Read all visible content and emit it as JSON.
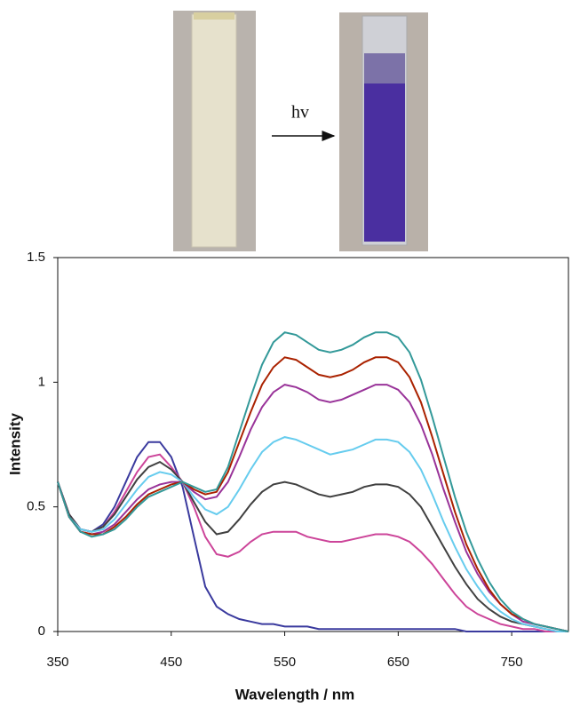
{
  "chart_data": {
    "type": "line",
    "annotation": "hv",
    "xlabel": "Wavelength / nm",
    "ylabel": "Intensity",
    "x": [
      350,
      360,
      370,
      380,
      390,
      400,
      410,
      420,
      430,
      440,
      450,
      460,
      470,
      480,
      490,
      500,
      510,
      520,
      530,
      540,
      550,
      560,
      570,
      580,
      590,
      600,
      610,
      620,
      630,
      640,
      650,
      660,
      670,
      680,
      690,
      700,
      710,
      720,
      730,
      740,
      750,
      760,
      770,
      780,
      790,
      800
    ],
    "xlim": [
      350,
      800
    ],
    "xticks": [
      350,
      450,
      550,
      650,
      750
    ],
    "ylim": [
      0,
      1.5
    ],
    "yticks": [
      0,
      0.5,
      1,
      1.5
    ],
    "series": [
      {
        "color": "#3a3a9e",
        "values": [
          0.6,
          0.47,
          0.41,
          0.4,
          0.43,
          0.5,
          0.6,
          0.7,
          0.76,
          0.76,
          0.7,
          0.58,
          0.38,
          0.18,
          0.1,
          0.07,
          0.05,
          0.04,
          0.03,
          0.03,
          0.02,
          0.02,
          0.02,
          0.01,
          0.01,
          0.01,
          0.01,
          0.01,
          0.01,
          0.01,
          0.01,
          0.01,
          0.01,
          0.01,
          0.01,
          0.01,
          0,
          0,
          0,
          0,
          0,
          0,
          0,
          0,
          0,
          0
        ]
      },
      {
        "color": "#cc4499",
        "values": [
          0.6,
          0.47,
          0.41,
          0.4,
          0.42,
          0.48,
          0.56,
          0.64,
          0.7,
          0.71,
          0.66,
          0.6,
          0.5,
          0.38,
          0.31,
          0.3,
          0.32,
          0.36,
          0.39,
          0.4,
          0.4,
          0.4,
          0.38,
          0.37,
          0.36,
          0.36,
          0.37,
          0.38,
          0.39,
          0.39,
          0.38,
          0.36,
          0.32,
          0.27,
          0.21,
          0.15,
          0.1,
          0.07,
          0.05,
          0.03,
          0.02,
          0.01,
          0.01,
          0,
          0,
          0
        ]
      },
      {
        "color": "#404040",
        "values": [
          0.6,
          0.47,
          0.41,
          0.4,
          0.42,
          0.47,
          0.54,
          0.61,
          0.66,
          0.68,
          0.65,
          0.6,
          0.52,
          0.44,
          0.39,
          0.4,
          0.45,
          0.51,
          0.56,
          0.59,
          0.6,
          0.59,
          0.57,
          0.55,
          0.54,
          0.55,
          0.56,
          0.58,
          0.59,
          0.59,
          0.58,
          0.55,
          0.5,
          0.42,
          0.34,
          0.26,
          0.19,
          0.13,
          0.09,
          0.06,
          0.04,
          0.03,
          0.02,
          0.01,
          0,
          0
        ]
      },
      {
        "color": "#66ccee",
        "values": [
          0.6,
          0.46,
          0.41,
          0.4,
          0.41,
          0.45,
          0.51,
          0.57,
          0.62,
          0.64,
          0.63,
          0.6,
          0.54,
          0.49,
          0.47,
          0.5,
          0.57,
          0.65,
          0.72,
          0.76,
          0.78,
          0.77,
          0.75,
          0.73,
          0.71,
          0.72,
          0.73,
          0.75,
          0.77,
          0.77,
          0.76,
          0.72,
          0.65,
          0.55,
          0.44,
          0.34,
          0.25,
          0.18,
          0.12,
          0.08,
          0.05,
          0.03,
          0.02,
          0.01,
          0,
          0
        ]
      },
      {
        "color": "#993399",
        "values": [
          0.6,
          0.46,
          0.4,
          0.39,
          0.4,
          0.43,
          0.48,
          0.53,
          0.57,
          0.59,
          0.6,
          0.6,
          0.56,
          0.53,
          0.54,
          0.6,
          0.7,
          0.81,
          0.9,
          0.96,
          0.99,
          0.98,
          0.96,
          0.93,
          0.92,
          0.93,
          0.95,
          0.97,
          0.99,
          0.99,
          0.97,
          0.92,
          0.83,
          0.71,
          0.57,
          0.44,
          0.32,
          0.23,
          0.16,
          0.11,
          0.07,
          0.04,
          0.03,
          0.02,
          0.01,
          0
        ]
      },
      {
        "color": "#aa2200",
        "values": [
          0.6,
          0.46,
          0.4,
          0.39,
          0.39,
          0.42,
          0.46,
          0.51,
          0.55,
          0.57,
          0.59,
          0.6,
          0.57,
          0.55,
          0.56,
          0.64,
          0.76,
          0.88,
          0.99,
          1.06,
          1.1,
          1.09,
          1.06,
          1.03,
          1.02,
          1.03,
          1.05,
          1.08,
          1.1,
          1.1,
          1.08,
          1.02,
          0.92,
          0.78,
          0.63,
          0.48,
          0.35,
          0.25,
          0.17,
          0.11,
          0.07,
          0.05,
          0.03,
          0.02,
          0.01,
          0
        ]
      },
      {
        "color": "#339999",
        "values": [
          0.6,
          0.46,
          0.4,
          0.38,
          0.39,
          0.41,
          0.45,
          0.5,
          0.54,
          0.56,
          0.58,
          0.6,
          0.58,
          0.56,
          0.57,
          0.66,
          0.8,
          0.94,
          1.07,
          1.16,
          1.2,
          1.19,
          1.16,
          1.13,
          1.12,
          1.13,
          1.15,
          1.18,
          1.2,
          1.2,
          1.18,
          1.12,
          1.01,
          0.86,
          0.7,
          0.54,
          0.4,
          0.29,
          0.2,
          0.13,
          0.08,
          0.05,
          0.03,
          0.02,
          0.01,
          0
        ]
      }
    ]
  }
}
